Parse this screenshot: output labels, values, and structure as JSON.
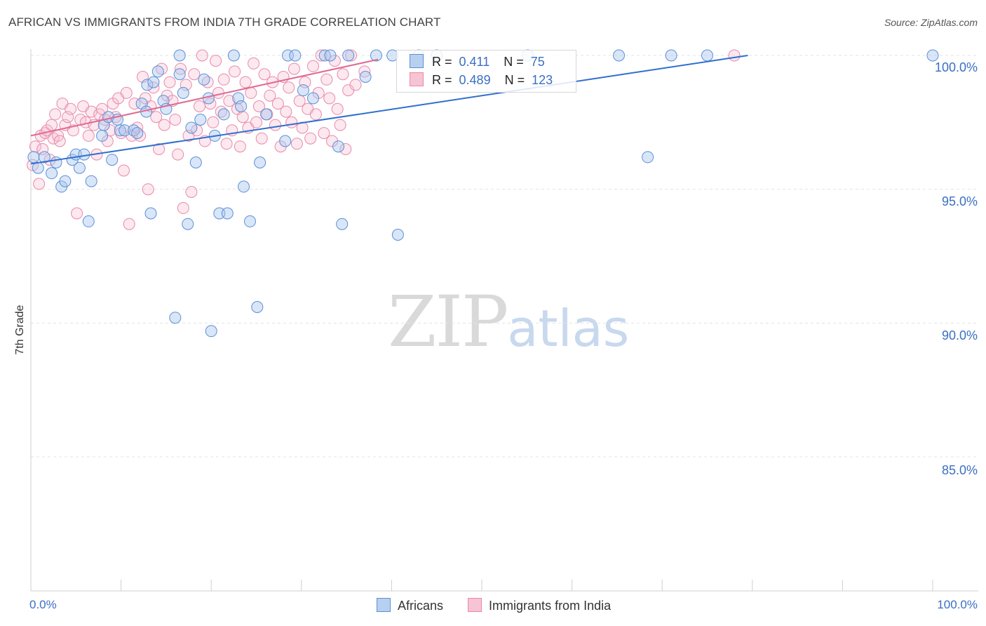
{
  "header": {
    "title": "AFRICAN VS IMMIGRANTS FROM INDIA 7TH GRADE CORRELATION CHART",
    "source": "Source: ZipAtlas.com"
  },
  "watermark": {
    "zip": "ZIP",
    "atlas": "atlas"
  },
  "legend": {
    "rows": [
      {
        "r_label": "R =",
        "r_value": "0.411",
        "n_label": "N =",
        "n_value": "75"
      },
      {
        "r_label": "R =",
        "r_value": "0.489",
        "n_label": "N =",
        "n_value": "123"
      }
    ],
    "bottom": [
      "Africans",
      "Immigrants from India"
    ]
  },
  "chart_data": {
    "type": "scatter",
    "title": "AFRICAN VS IMMIGRANTS FROM INDIA 7TH GRADE CORRELATION CHART",
    "xlabel": "",
    "ylabel": "7th Grade",
    "xlim": [
      0,
      100
    ],
    "ylim": [
      80.5,
      100.5
    ],
    "x_tick_labels": [
      "0.0%",
      "100.0%"
    ],
    "y_ticks": [
      85,
      90,
      95,
      100
    ],
    "y_tick_labels": [
      "85.0%",
      "90.0%",
      "95.0%",
      "100.0%"
    ],
    "grid": true,
    "colors": {
      "africans": "#5b8fd6",
      "india": "#e88aa8",
      "africans_line": "#2f6fce",
      "india_line": "#e06a92",
      "axis_text": "#3a6fc4"
    },
    "series": [
      {
        "name": "Africans",
        "R": 0.411,
        "N": 75,
        "trend": {
          "x": [
            0,
            79.5
          ],
          "y": [
            95.95,
            100.0
          ]
        },
        "points": [
          [
            0.3,
            96.2
          ],
          [
            0.8,
            95.8
          ],
          [
            1.5,
            96.2
          ],
          [
            2.3,
            95.6
          ],
          [
            2.8,
            96.0
          ],
          [
            3.4,
            95.1
          ],
          [
            3.8,
            95.3
          ],
          [
            4.6,
            96.1
          ],
          [
            5.0,
            96.3
          ],
          [
            5.4,
            95.8
          ],
          [
            5.9,
            96.3
          ],
          [
            6.4,
            93.8
          ],
          [
            6.7,
            95.3
          ],
          [
            7.9,
            97.0
          ],
          [
            8.1,
            97.4
          ],
          [
            8.6,
            97.7
          ],
          [
            9.0,
            96.1
          ],
          [
            9.6,
            97.6
          ],
          [
            9.9,
            97.2
          ],
          [
            10.4,
            97.2
          ],
          [
            11.4,
            97.2
          ],
          [
            11.8,
            97.1
          ],
          [
            12.3,
            98.2
          ],
          [
            12.8,
            97.9
          ],
          [
            12.9,
            98.9
          ],
          [
            13.3,
            94.1
          ],
          [
            13.6,
            99.0
          ],
          [
            14.1,
            99.4
          ],
          [
            14.7,
            98.3
          ],
          [
            15.0,
            98.0
          ],
          [
            16.0,
            90.2
          ],
          [
            16.5,
            99.3
          ],
          [
            16.5,
            100.0
          ],
          [
            16.9,
            98.6
          ],
          [
            17.4,
            93.7
          ],
          [
            17.8,
            97.3
          ],
          [
            18.3,
            96.0
          ],
          [
            18.8,
            97.6
          ],
          [
            19.2,
            99.1
          ],
          [
            19.7,
            98.4
          ],
          [
            20.0,
            89.7
          ],
          [
            20.4,
            97.0
          ],
          [
            20.9,
            94.1
          ],
          [
            21.4,
            97.8
          ],
          [
            21.8,
            94.1
          ],
          [
            22.5,
            100.0
          ],
          [
            23.0,
            98.4
          ],
          [
            23.3,
            98.1
          ],
          [
            23.6,
            95.1
          ],
          [
            24.3,
            93.8
          ],
          [
            25.1,
            90.6
          ],
          [
            25.4,
            96.0
          ],
          [
            26.1,
            97.8
          ],
          [
            28.2,
            96.8
          ],
          [
            28.5,
            100.0
          ],
          [
            29.3,
            100.0
          ],
          [
            30.2,
            98.7
          ],
          [
            31.3,
            98.4
          ],
          [
            32.6,
            100.0
          ],
          [
            33.2,
            100.0
          ],
          [
            34.1,
            96.6
          ],
          [
            34.5,
            93.7
          ],
          [
            35.2,
            100.0
          ],
          [
            37.1,
            99.2
          ],
          [
            38.3,
            100.0
          ],
          [
            40.1,
            100.0
          ],
          [
            40.7,
            93.3
          ],
          [
            43.0,
            100.0
          ],
          [
            45.0,
            100.0
          ],
          [
            55.1,
            100.0
          ],
          [
            65.2,
            100.0
          ],
          [
            68.4,
            96.2
          ],
          [
            71.0,
            100.0
          ],
          [
            75.0,
            100.0
          ],
          [
            100.0,
            100.0
          ]
        ]
      },
      {
        "name": "Immigrants from India",
        "R": 0.489,
        "N": 123,
        "trend": {
          "x": [
            0,
            38.5
          ],
          "y": [
            97.0,
            99.85
          ]
        },
        "points": [
          [
            0.2,
            95.9
          ],
          [
            0.5,
            96.6
          ],
          [
            0.9,
            95.2
          ],
          [
            1.1,
            97.0
          ],
          [
            1.3,
            96.5
          ],
          [
            1.6,
            97.1
          ],
          [
            1.8,
            97.2
          ],
          [
            2.1,
            96.1
          ],
          [
            2.3,
            97.4
          ],
          [
            2.5,
            96.9
          ],
          [
            2.7,
            97.8
          ],
          [
            3.0,
            97.0
          ],
          [
            3.2,
            96.8
          ],
          [
            3.5,
            98.2
          ],
          [
            3.8,
            97.4
          ],
          [
            4.1,
            97.7
          ],
          [
            4.4,
            98.0
          ],
          [
            4.7,
            97.2
          ],
          [
            5.1,
            94.1
          ],
          [
            5.5,
            97.6
          ],
          [
            5.8,
            98.1
          ],
          [
            6.1,
            97.5
          ],
          [
            6.4,
            97.0
          ],
          [
            6.7,
            97.9
          ],
          [
            7.0,
            97.4
          ],
          [
            7.3,
            96.3
          ],
          [
            7.6,
            97.8
          ],
          [
            7.9,
            98.0
          ],
          [
            8.2,
            97.6
          ],
          [
            8.5,
            96.8
          ],
          [
            8.8,
            97.2
          ],
          [
            9.1,
            98.2
          ],
          [
            9.4,
            97.7
          ],
          [
            9.7,
            98.4
          ],
          [
            10.0,
            97.1
          ],
          [
            10.3,
            95.7
          ],
          [
            10.6,
            98.6
          ],
          [
            10.9,
            93.7
          ],
          [
            11.2,
            97.0
          ],
          [
            11.5,
            98.2
          ],
          [
            11.8,
            97.3
          ],
          [
            12.1,
            97.0
          ],
          [
            12.4,
            99.2
          ],
          [
            12.7,
            98.4
          ],
          [
            13.0,
            95.0
          ],
          [
            13.3,
            98.1
          ],
          [
            13.6,
            98.8
          ],
          [
            13.9,
            97.7
          ],
          [
            14.2,
            96.5
          ],
          [
            14.5,
            99.5
          ],
          [
            14.8,
            97.4
          ],
          [
            15.1,
            98.5
          ],
          [
            15.4,
            99.0
          ],
          [
            15.7,
            98.3
          ],
          [
            16.0,
            97.6
          ],
          [
            16.3,
            96.3
          ],
          [
            16.6,
            99.5
          ],
          [
            16.9,
            94.3
          ],
          [
            17.2,
            98.9
          ],
          [
            17.5,
            97.0
          ],
          [
            17.8,
            94.9
          ],
          [
            18.1,
            99.3
          ],
          [
            18.4,
            97.2
          ],
          [
            18.7,
            98.1
          ],
          [
            19.0,
            100.0
          ],
          [
            19.3,
            96.8
          ],
          [
            19.6,
            99.0
          ],
          [
            19.9,
            98.2
          ],
          [
            20.2,
            97.5
          ],
          [
            20.5,
            99.8
          ],
          [
            20.8,
            98.6
          ],
          [
            21.1,
            97.9
          ],
          [
            21.4,
            99.1
          ],
          [
            21.7,
            96.7
          ],
          [
            22.0,
            98.3
          ],
          [
            22.3,
            97.2
          ],
          [
            22.6,
            99.4
          ],
          [
            22.9,
            98.0
          ],
          [
            23.2,
            96.6
          ],
          [
            23.5,
            97.7
          ],
          [
            23.8,
            99.0
          ],
          [
            24.1,
            97.3
          ],
          [
            24.4,
            98.6
          ],
          [
            24.7,
            99.7
          ],
          [
            25.0,
            97.5
          ],
          [
            25.3,
            98.1
          ],
          [
            25.6,
            96.9
          ],
          [
            25.9,
            99.3
          ],
          [
            26.2,
            97.8
          ],
          [
            26.5,
            98.5
          ],
          [
            26.8,
            99.0
          ],
          [
            27.1,
            97.4
          ],
          [
            27.4,
            98.2
          ],
          [
            27.7,
            96.6
          ],
          [
            28.0,
            99.2
          ],
          [
            28.3,
            97.9
          ],
          [
            28.6,
            98.8
          ],
          [
            28.9,
            97.5
          ],
          [
            29.2,
            99.5
          ],
          [
            29.5,
            96.7
          ],
          [
            29.8,
            98.3
          ],
          [
            30.1,
            97.3
          ],
          [
            30.4,
            99.0
          ],
          [
            30.7,
            98.0
          ],
          [
            31.0,
            96.9
          ],
          [
            31.3,
            99.6
          ],
          [
            31.6,
            97.8
          ],
          [
            31.9,
            98.6
          ],
          [
            32.2,
            100.0
          ],
          [
            32.5,
            97.1
          ],
          [
            32.8,
            99.1
          ],
          [
            33.1,
            98.4
          ],
          [
            33.4,
            96.8
          ],
          [
            33.7,
            99.8
          ],
          [
            34.0,
            98.0
          ],
          [
            34.3,
            97.4
          ],
          [
            34.6,
            99.3
          ],
          [
            34.9,
            96.5
          ],
          [
            35.2,
            98.7
          ],
          [
            35.5,
            100.0
          ],
          [
            36.0,
            98.9
          ],
          [
            37.0,
            99.4
          ],
          [
            78.0,
            100.0
          ]
        ]
      }
    ]
  }
}
